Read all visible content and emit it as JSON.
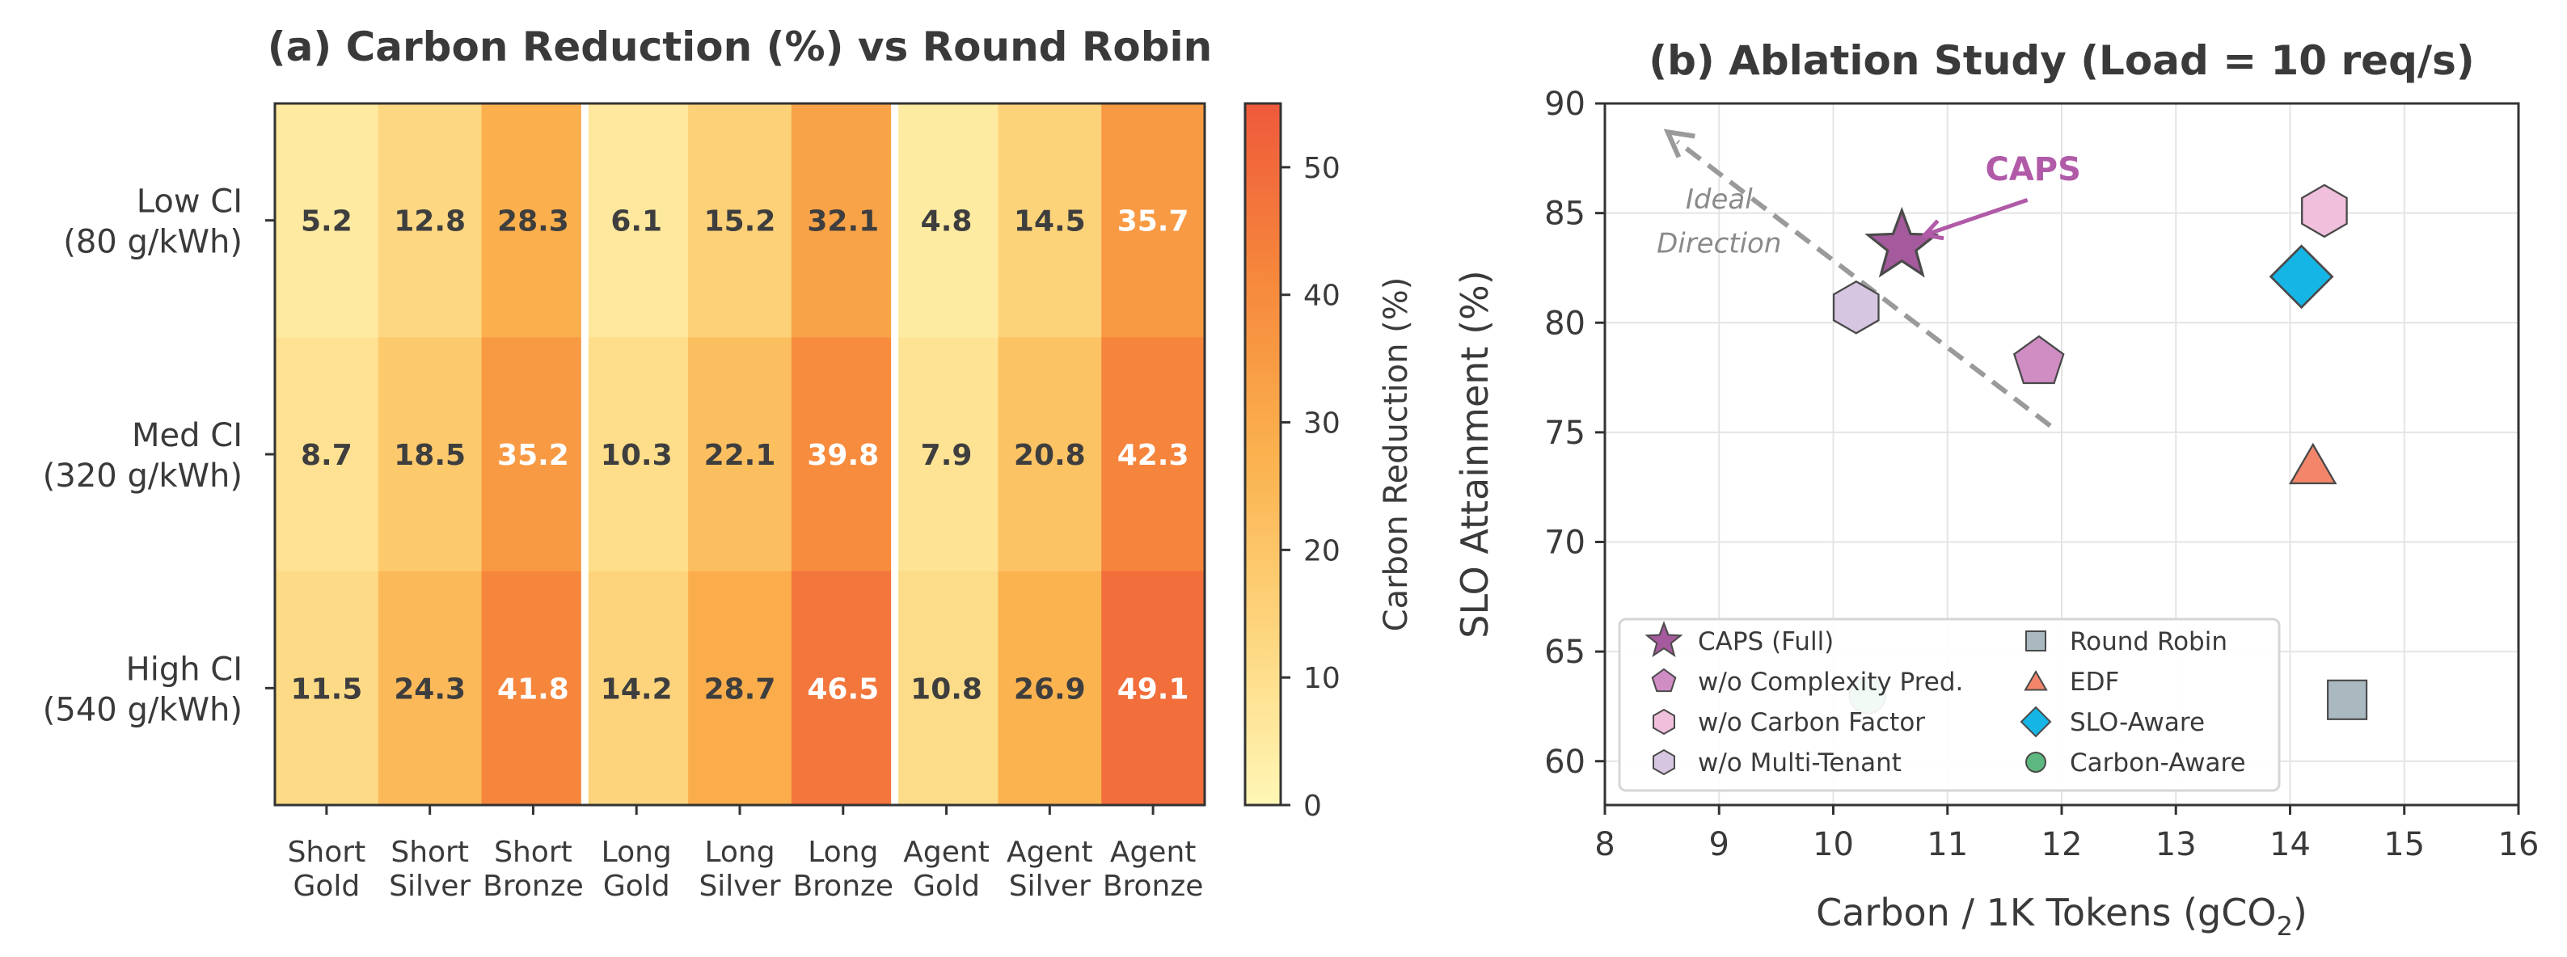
{
  "chart_data": [
    {
      "type": "heatmap",
      "title": "(a) Carbon Reduction (%) vs Round Robin",
      "columns": [
        "Short\nGold",
        "Short\nSilver",
        "Short\nBronze",
        "Long\nGold",
        "Long\nSilver",
        "Long\nBronze",
        "Agent\nGold",
        "Agent\nSilver",
        "Agent\nBronze"
      ],
      "rows": [
        "Low CI\n(80 g/kWh)",
        "Med CI\n(320 g/kWh)",
        "High CI\n(540 g/kWh)"
      ],
      "values": [
        [
          5.2,
          12.8,
          28.3,
          6.1,
          15.2,
          32.1,
          4.8,
          14.5,
          35.7
        ],
        [
          8.7,
          18.5,
          35.2,
          10.3,
          22.1,
          39.8,
          7.9,
          20.8,
          42.3
        ],
        [
          11.5,
          24.3,
          41.8,
          14.2,
          28.7,
          46.5,
          10.8,
          26.9,
          49.1
        ]
      ],
      "value_range": [
        0,
        55
      ],
      "colorbar": {
        "label": "Carbon Reduction (%)",
        "ticks": [
          0,
          10,
          20,
          30,
          40,
          50
        ]
      },
      "group_separators_after_columns": [
        3,
        6
      ],
      "colormap": [
        "#fff7b6",
        "#fdd57d",
        "#fbb14e",
        "#f6883c",
        "#ef5a3b"
      ]
    },
    {
      "type": "scatter",
      "title": "(b) Ablation Study (Load = 10 req/s)",
      "xlabel": "Carbon / 1K Tokens (gCO",
      "xlabel_sub": "2",
      "xlabel_end": ")",
      "ylabel": "SLO Attainment (%)",
      "xlim": [
        8,
        16
      ],
      "ylim": [
        58,
        90
      ],
      "xticks": [
        8,
        9,
        10,
        11,
        12,
        13,
        14,
        15,
        16
      ],
      "yticks": [
        60,
        65,
        70,
        75,
        80,
        85,
        90
      ],
      "grid": true,
      "legend_position": "lower-left",
      "points": [
        {
          "name": "CAPS (Full)",
          "x": 10.6,
          "y": 83.5,
          "marker": "star",
          "color": "#a45a9c"
        },
        {
          "name": "w/o Complexity Pred.",
          "x": 11.8,
          "y": 78.2,
          "marker": "pentagon",
          "color": "#cf8dc4"
        },
        {
          "name": "w/o Carbon Factor",
          "x": 14.3,
          "y": 85.1,
          "marker": "hexagon",
          "color": "#f0bfdc"
        },
        {
          "name": "w/o Multi-Tenant",
          "x": 10.2,
          "y": 80.7,
          "marker": "hexagon",
          "color": "#d7c6e2"
        },
        {
          "name": "Round Robin",
          "x": 14.5,
          "y": 62.8,
          "marker": "square",
          "color": "#aab8c0"
        },
        {
          "name": "EDF",
          "x": 14.2,
          "y": 73.5,
          "marker": "triangle",
          "color": "#f3866a"
        },
        {
          "name": "SLO-Aware",
          "x": 14.1,
          "y": 82.1,
          "marker": "diamond",
          "color": "#15b5e6"
        },
        {
          "name": "Carbon-Aware",
          "x": 10.3,
          "y": 63.0,
          "marker": "circle",
          "color": "#5db87f"
        }
      ],
      "arrow": {
        "label_line1": "Ideal",
        "label_line2": "Direction",
        "from": [
          11.9,
          75.3
        ],
        "to": [
          8.55,
          88.7
        ]
      },
      "annotation": {
        "text": "CAPS",
        "text_at": [
          11.75,
          86.5
        ],
        "points_to": [
          10.8,
          84.0
        ]
      }
    }
  ]
}
